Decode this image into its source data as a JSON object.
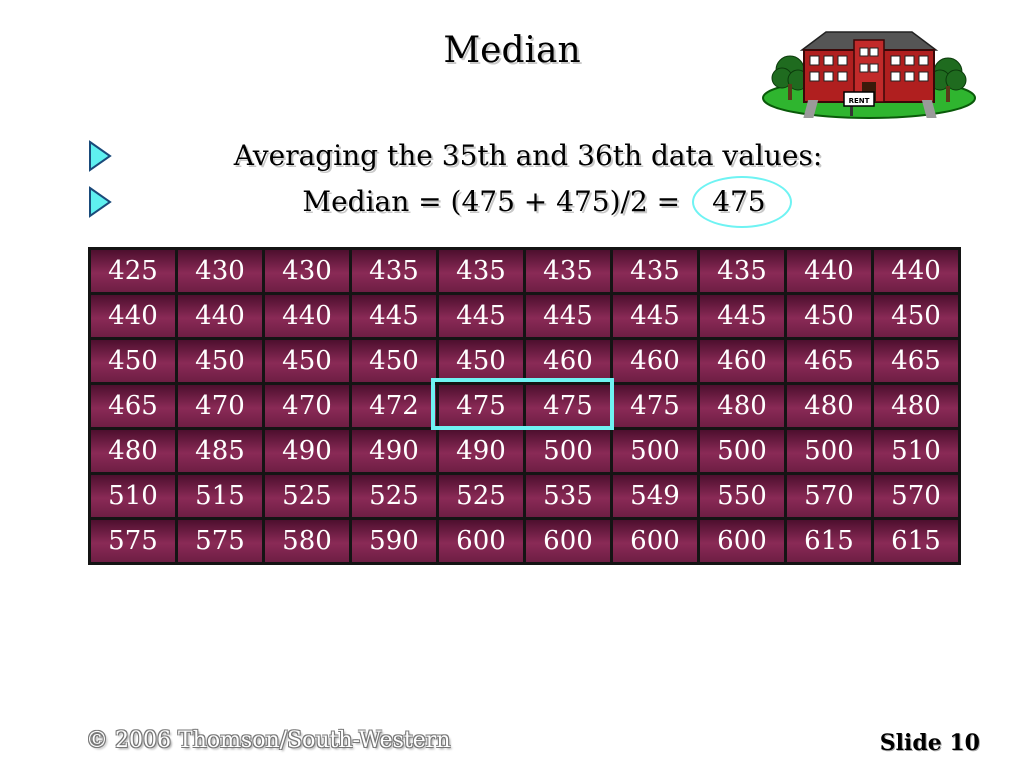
{
  "slide": {
    "title": "Median",
    "bullets": [
      {
        "text": "Averaging the 35th and 36th data values:"
      },
      {
        "formula": "Median = (475 + 475)/2 =",
        "answer": "475"
      }
    ],
    "data_values": [
      [
        425,
        430,
        430,
        435,
        435,
        435,
        435,
        435,
        440,
        440
      ],
      [
        440,
        440,
        440,
        445,
        445,
        445,
        445,
        445,
        450,
        450
      ],
      [
        450,
        450,
        450,
        450,
        450,
        460,
        460,
        460,
        465,
        465
      ],
      [
        465,
        470,
        470,
        472,
        475,
        475,
        475,
        480,
        480,
        480
      ],
      [
        480,
        485,
        490,
        490,
        490,
        500,
        500,
        500,
        500,
        510
      ],
      [
        510,
        515,
        525,
        525,
        525,
        535,
        549,
        550,
        570,
        570
      ],
      [
        575,
        575,
        580,
        590,
        600,
        600,
        600,
        600,
        615,
        615
      ]
    ],
    "highlighted_values": {
      "row": 4,
      "columns": [
        5,
        6
      ]
    },
    "highlight_color": "#6ff3f3",
    "cell_color": "#7a2450",
    "clipart_sign": "RENT",
    "footer": {
      "copyright": "© 2006  Thomson/South-Western",
      "slide_label": "Slide 10"
    }
  }
}
